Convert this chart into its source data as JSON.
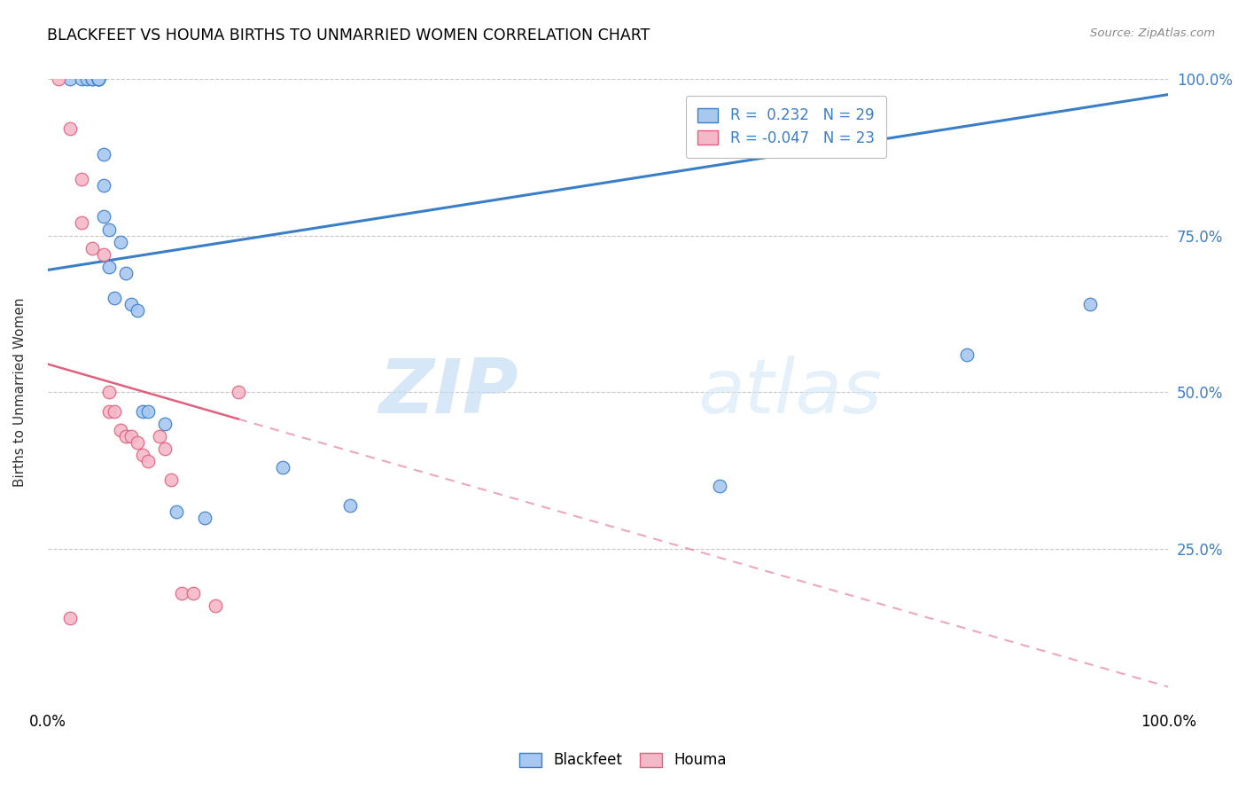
{
  "title": "BLACKFEET VS HOUMA BIRTHS TO UNMARRIED WOMEN CORRELATION CHART",
  "source": "Source: ZipAtlas.com",
  "ylabel": "Births to Unmarried Women",
  "legend_r_blackfeet": "0.232",
  "legend_n_blackfeet": "29",
  "legend_r_houma": "-0.047",
  "legend_n_houma": "23",
  "legend_label_blackfeet": "Blackfeet",
  "legend_label_houma": "Houma",
  "xlim": [
    0.0,
    1.0
  ],
  "ylim": [
    0.0,
    1.0
  ],
  "yticks": [
    0.0,
    0.25,
    0.5,
    0.75,
    1.0
  ],
  "ytick_labels": [
    "",
    "25.0%",
    "50.0%",
    "75.0%",
    "100.0%"
  ],
  "xticks": [
    0.0,
    0.1,
    0.2,
    0.3,
    0.4,
    0.5,
    0.6,
    0.7,
    0.8,
    0.9,
    1.0
  ],
  "xtick_labels": [
    "0.0%",
    "",
    "",
    "",
    "",
    "",
    "",
    "",
    "",
    "",
    "100.0%"
  ],
  "color_blackfeet": "#A8C8F0",
  "color_houma": "#F5B8C8",
  "line_color_blackfeet": "#3A7EC8",
  "line_color_houma": "#E06080",
  "watermark_zip": "ZIP",
  "watermark_atlas": "atlas",
  "blackfeet_x": [
    0.02,
    0.03,
    0.035,
    0.04,
    0.04,
    0.045,
    0.045,
    0.045,
    0.045,
    0.05,
    0.05,
    0.05,
    0.055,
    0.055,
    0.06,
    0.065,
    0.07,
    0.075,
    0.08,
    0.085,
    0.09,
    0.105,
    0.115,
    0.14,
    0.21,
    0.27,
    0.6,
    0.82,
    0.93
  ],
  "blackfeet_y": [
    1.0,
    1.0,
    1.0,
    1.0,
    1.0,
    1.0,
    1.0,
    1.0,
    1.0,
    0.88,
    0.83,
    0.78,
    0.76,
    0.7,
    0.65,
    0.74,
    0.69,
    0.64,
    0.63,
    0.47,
    0.47,
    0.45,
    0.31,
    0.3,
    0.38,
    0.32,
    0.35,
    0.56,
    0.64
  ],
  "houma_x": [
    0.01,
    0.02,
    0.02,
    0.03,
    0.03,
    0.04,
    0.05,
    0.055,
    0.055,
    0.06,
    0.065,
    0.07,
    0.075,
    0.08,
    0.085,
    0.09,
    0.1,
    0.105,
    0.11,
    0.12,
    0.13,
    0.15,
    0.17
  ],
  "houma_y": [
    1.0,
    0.92,
    0.14,
    0.84,
    0.77,
    0.73,
    0.72,
    0.5,
    0.47,
    0.47,
    0.44,
    0.43,
    0.43,
    0.42,
    0.4,
    0.39,
    0.43,
    0.41,
    0.36,
    0.18,
    0.18,
    0.16,
    0.5
  ],
  "line_bf_x0": 0.0,
  "line_bf_y0": 0.695,
  "line_bf_x1": 1.0,
  "line_bf_y1": 0.975,
  "line_h_x0": 0.0,
  "line_h_y0": 0.545,
  "line_h_x1": 1.0,
  "line_h_y1": 0.03
}
